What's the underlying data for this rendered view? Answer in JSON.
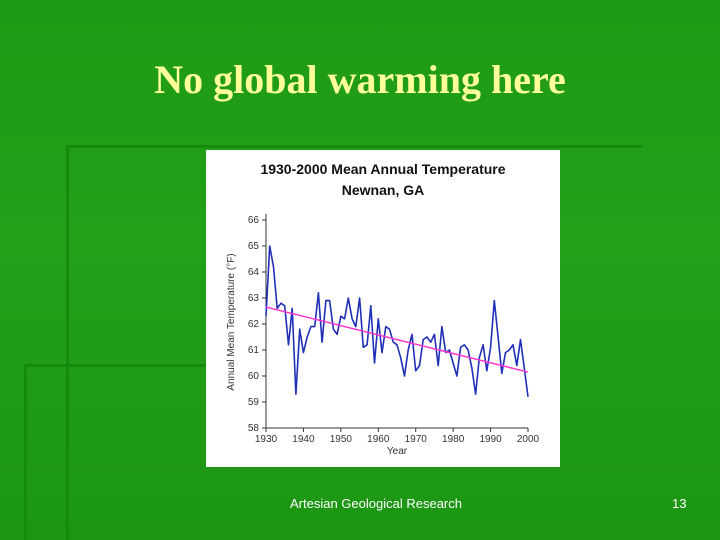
{
  "slide": {
    "title": "No global warming here",
    "footer": "Artesian Geological Research",
    "page_number": "13"
  },
  "colors": {
    "background": "#1f9a14",
    "title": "#ffff99",
    "series": "#1f2fb8",
    "trend": "#ff33cc"
  },
  "chart_data": {
    "type": "line",
    "title": "1930-2000 Mean Annual Temperature",
    "subtitle": "Newnan, GA",
    "xlabel": "Year",
    "ylabel": "Annual Mean Temperature (°F)",
    "xlim": [
      1930,
      2000
    ],
    "ylim": [
      58,
      66
    ],
    "xticks": [
      "1930",
      "1940",
      "1950",
      "1960",
      "1970",
      "1980",
      "1990",
      "2000"
    ],
    "yticks": [
      "58",
      "59",
      "60",
      "61",
      "62",
      "63",
      "64",
      "65",
      "66"
    ],
    "grid": false,
    "series": [
      {
        "x": [
          1930,
          1931,
          1932,
          1933,
          1934,
          1935,
          1936,
          1937,
          1938,
          1939,
          1940,
          1941,
          1942,
          1943,
          1944,
          1945,
          1946,
          1947,
          1948,
          1949,
          1950,
          1951,
          1952,
          1953,
          1954,
          1955,
          1956,
          1957,
          1958,
          1959,
          1960,
          1961,
          1962,
          1963,
          1964,
          1965,
          1966,
          1967,
          1968,
          1969,
          1970,
          1971,
          1972,
          1973,
          1974,
          1975,
          1976,
          1977,
          1978,
          1979,
          1980,
          1981,
          1982,
          1983,
          1984,
          1985,
          1986,
          1987,
          1988,
          1989,
          1990,
          1991,
          1992,
          1993,
          1994,
          1995,
          1996,
          1997,
          1998,
          1999,
          2000
        ],
        "y": [
          62.3,
          65.0,
          64.2,
          62.6,
          62.8,
          62.7,
          61.2,
          62.6,
          59.3,
          61.8,
          60.9,
          61.5,
          61.9,
          61.9,
          63.2,
          61.3,
          62.9,
          62.9,
          61.8,
          61.6,
          62.3,
          62.2,
          63.0,
          62.2,
          61.9,
          63.0,
          61.1,
          61.2,
          62.7,
          60.5,
          62.2,
          60.9,
          61.9,
          61.8,
          61.3,
          61.2,
          60.7,
          60.0,
          61.0,
          61.6,
          60.2,
          60.4,
          61.4,
          61.5,
          61.3,
          61.6,
          60.4,
          61.9,
          60.9,
          61.0,
          60.5,
          60.0,
          61.1,
          61.2,
          61.0,
          60.3,
          59.3,
          60.7,
          61.2,
          60.2,
          61.1,
          62.9,
          61.5,
          60.1,
          60.9,
          61.0,
          61.2,
          60.4,
          61.4,
          60.3,
          59.2
        ]
      },
      {
        "x": [
          1930,
          2000
        ],
        "y": [
          62.65,
          60.15
        ]
      }
    ]
  }
}
